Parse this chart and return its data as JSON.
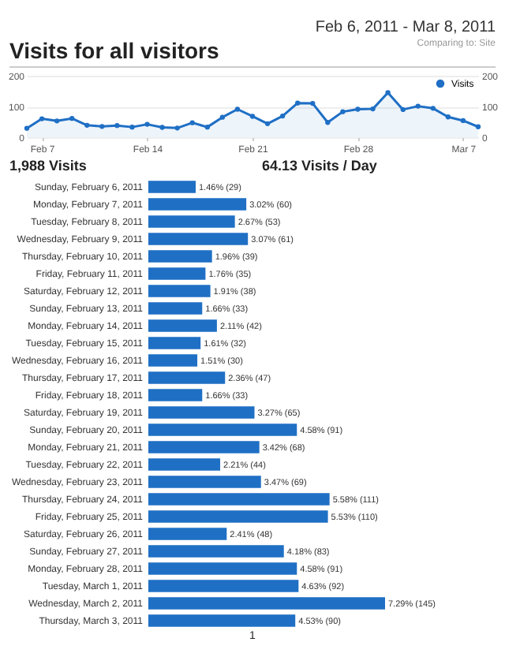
{
  "chart_data": [
    {
      "type": "area",
      "title": "Visits for all visitors",
      "subtitle": "Feb 6, 2011 - Mar 8, 2011",
      "annotations": [
        "Comparing to: Site",
        "1,988 Visits",
        "64.13 Visits / Day"
      ],
      "x": [
        "2011-02-06",
        "2011-02-07",
        "2011-02-08",
        "2011-02-09",
        "2011-02-10",
        "2011-02-11",
        "2011-02-12",
        "2011-02-13",
        "2011-02-14",
        "2011-02-15",
        "2011-02-16",
        "2011-02-17",
        "2011-02-18",
        "2011-02-19",
        "2011-02-20",
        "2011-02-21",
        "2011-02-22",
        "2011-02-23",
        "2011-02-24",
        "2011-02-25",
        "2011-02-26",
        "2011-02-27",
        "2011-02-28",
        "2011-03-01",
        "2011-03-02",
        "2011-03-03",
        "2011-03-04",
        "2011-03-05",
        "2011-03-06",
        "2011-03-07",
        "2011-03-08"
      ],
      "series": [
        {
          "name": "Visits",
          "color": "#1f6fc5",
          "values": [
            29,
            60,
            53,
            61,
            39,
            35,
            38,
            33,
            42,
            32,
            30,
            47,
            33,
            65,
            91,
            68,
            44,
            69,
            111,
            110,
            48,
            83,
            91,
            92,
            145,
            90,
            101,
            94,
            66,
            54,
            34
          ]
        }
      ],
      "xlim": [
        "2011-02-06",
        "2011-03-08"
      ],
      "xticks": [
        {
          "value": "2011-02-07",
          "label": "Feb 7"
        },
        {
          "value": "2011-02-14",
          "label": "Feb 14"
        },
        {
          "value": "2011-02-21",
          "label": "Feb 21"
        },
        {
          "value": "2011-02-28",
          "label": "Feb 28"
        },
        {
          "value": "2011-03-07",
          "label": "Mar 7"
        }
      ],
      "ylim": [
        0,
        200
      ],
      "yticks": [
        0,
        100,
        200
      ],
      "y2lim": [
        0,
        200
      ],
      "y2ticks": [
        0,
        100,
        200
      ],
      "grid": "y",
      "legend": "top right",
      "marker": "circle"
    },
    {
      "type": "bar",
      "orientation": "horizontal",
      "categories": [
        "Sunday, February 6, 2011",
        "Monday, February 7, 2011",
        "Tuesday, February 8, 2011",
        "Wednesday, February 9, 2011",
        "Thursday, February 10, 2011",
        "Friday, February 11, 2011",
        "Saturday, February 12, 2011",
        "Sunday, February 13, 2011",
        "Monday, February 14, 2011",
        "Tuesday, February 15, 2011",
        "Wednesday, February 16, 2011",
        "Thursday, February 17, 2011",
        "Friday, February 18, 2011",
        "Saturday, February 19, 2011",
        "Sunday, February 20, 2011",
        "Monday, February 21, 2011",
        "Tuesday, February 22, 2011",
        "Wednesday, February 23, 2011",
        "Thursday, February 24, 2011",
        "Friday, February 25, 2011",
        "Saturday, February 26, 2011",
        "Sunday, February 27, 2011",
        "Monday, February 28, 2011",
        "Tuesday, March 1, 2011",
        "Wednesday, March 2, 2011",
        "Thursday, March 3, 2011"
      ],
      "values": [
        29,
        60,
        53,
        61,
        39,
        35,
        38,
        33,
        42,
        32,
        30,
        47,
        33,
        65,
        91,
        68,
        44,
        69,
        111,
        110,
        48,
        83,
        91,
        92,
        145,
        90
      ],
      "value_labels": [
        "1.46% (29)",
        "3.02% (60)",
        "2.67% (53)",
        "3.07% (61)",
        "1.96% (39)",
        "1.76% (35)",
        "1.91% (38)",
        "1.66% (33)",
        "2.11% (42)",
        "1.61% (32)",
        "1.51% (30)",
        "2.36% (47)",
        "1.66% (33)",
        "3.27% (65)",
        "4.58% (91)",
        "3.42% (68)",
        "2.21% (44)",
        "3.47% (69)",
        "5.58% (111)",
        "5.53% (110)",
        "2.41% (48)",
        "4.18% (83)",
        "4.58% (91)",
        "4.63% (92)",
        "7.29% (145)",
        "4.53% (90)"
      ],
      "color": "#1f6fc5",
      "annotations": [
        "1"
      ]
    }
  ]
}
